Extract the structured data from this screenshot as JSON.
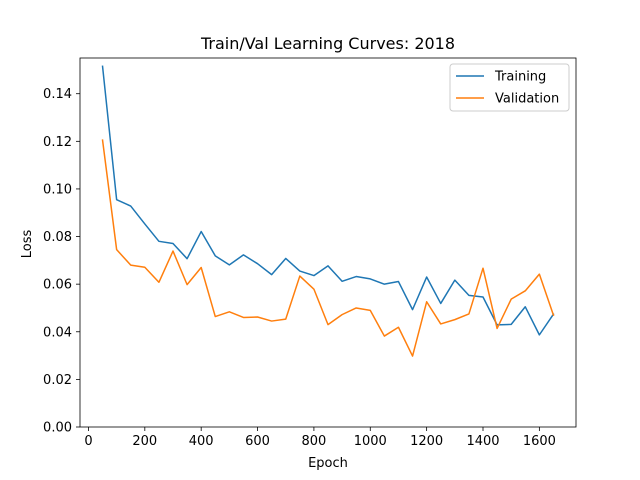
{
  "chart_data": {
    "type": "line",
    "title": "Train/Val Learning Curves: 2018",
    "xlabel": "Epoch",
    "ylabel": "Loss",
    "xlim": [
      -30,
      1730
    ],
    "ylim": [
      0,
      0.155
    ],
    "xticks": [
      0,
      200,
      400,
      600,
      800,
      1000,
      1200,
      1400,
      1600
    ],
    "xtick_labels": [
      "0",
      "200",
      "400",
      "600",
      "800",
      "1000",
      "1200",
      "1400",
      "1600"
    ],
    "yticks": [
      0.0,
      0.02,
      0.04,
      0.06,
      0.08,
      0.1,
      0.12,
      0.14
    ],
    "ytick_labels": [
      "0.00",
      "0.02",
      "0.04",
      "0.06",
      "0.08",
      "0.10",
      "0.12",
      "0.14"
    ],
    "grid": false,
    "legend_position": "top-right",
    "x": [
      50,
      100,
      150,
      200,
      250,
      300,
      350,
      400,
      450,
      500,
      550,
      600,
      650,
      700,
      750,
      800,
      850,
      900,
      950,
      1000,
      1050,
      1100,
      1150,
      1200,
      1250,
      1300,
      1350,
      1400,
      1450,
      1500,
      1550,
      1600,
      1650
    ],
    "series": [
      {
        "name": "Training",
        "color": "#1f77b4",
        "values": [
          0.1515,
          0.0955,
          0.0928,
          0.0853,
          0.078,
          0.0771,
          0.0707,
          0.0821,
          0.0719,
          0.0681,
          0.0723,
          0.0686,
          0.064,
          0.0708,
          0.0655,
          0.0636,
          0.0677,
          0.0612,
          0.0632,
          0.0622,
          0.06,
          0.0611,
          0.0493,
          0.063,
          0.0519,
          0.0617,
          0.0553,
          0.0546,
          0.0429,
          0.0431,
          0.0505,
          0.0387,
          0.0474
        ]
      },
      {
        "name": "Validation",
        "color": "#ff7f0e",
        "values": [
          0.1205,
          0.0745,
          0.068,
          0.0671,
          0.0608,
          0.0739,
          0.0598,
          0.067,
          0.0464,
          0.0484,
          0.046,
          0.0462,
          0.0445,
          0.0453,
          0.0634,
          0.0579,
          0.043,
          0.0472,
          0.05,
          0.049,
          0.0382,
          0.0419,
          0.0298,
          0.0526,
          0.0433,
          0.0451,
          0.0475,
          0.0667,
          0.0414,
          0.0537,
          0.0572,
          0.0642,
          0.047
        ]
      }
    ]
  }
}
